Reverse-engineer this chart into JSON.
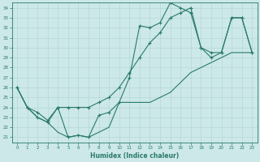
{
  "xlabel": "Humidex (Indice chaleur)",
  "bg_color": "#cce8e8",
  "grid_color": "#b0d4d4",
  "line_color": "#2a7a6a",
  "xlim": [
    -0.5,
    23.5
  ],
  "ylim": [
    20.5,
    34.5
  ],
  "xticks": [
    0,
    1,
    2,
    3,
    4,
    5,
    6,
    7,
    8,
    9,
    10,
    11,
    12,
    13,
    14,
    15,
    16,
    17,
    18,
    19,
    20,
    21,
    22,
    23
  ],
  "yticks": [
    21,
    22,
    23,
    24,
    25,
    26,
    27,
    28,
    29,
    30,
    31,
    32,
    33,
    34
  ],
  "curve1_x": [
    0,
    1,
    2,
    3,
    4,
    5,
    6,
    7,
    8,
    9,
    10,
    11,
    12,
    13,
    14,
    15,
    16,
    17,
    18,
    19,
    20,
    21,
    22,
    23
  ],
  "curve1_y": [
    26.0,
    24.0,
    23.0,
    22.5,
    24.0,
    21.0,
    21.2,
    21.0,
    23.2,
    23.5,
    24.5,
    27.0,
    32.2,
    32.0,
    32.5,
    34.5,
    34.0,
    33.5,
    30.0,
    29.0,
    29.5,
    33.0,
    33.0,
    29.5
  ],
  "curve2_x": [
    0,
    1,
    2,
    3,
    4,
    5,
    6,
    7,
    8,
    9,
    10,
    11,
    12,
    13,
    14,
    15,
    16,
    17,
    18,
    19,
    20,
    21,
    22,
    23
  ],
  "curve2_y": [
    26.0,
    24.0,
    23.5,
    22.7,
    24.0,
    24.0,
    24.0,
    24.0,
    24.5,
    25.0,
    26.0,
    27.5,
    29.0,
    30.5,
    31.5,
    33.0,
    33.5,
    34.0,
    30.0,
    29.5,
    29.5,
    33.0,
    33.0,
    29.5
  ],
  "curve3_x": [
    0,
    1,
    2,
    3,
    4,
    5,
    6,
    7,
    8,
    9,
    10,
    11,
    12,
    13,
    14,
    15,
    16,
    17,
    18,
    19,
    20,
    21,
    22,
    23
  ],
  "curve3_y": [
    26.0,
    24.0,
    23.0,
    22.5,
    21.5,
    21.0,
    21.2,
    21.0,
    21.5,
    22.0,
    24.5,
    24.5,
    24.5,
    24.5,
    25.0,
    25.5,
    26.5,
    27.5,
    28.0,
    28.5,
    29.0,
    29.5,
    29.5,
    29.5
  ]
}
